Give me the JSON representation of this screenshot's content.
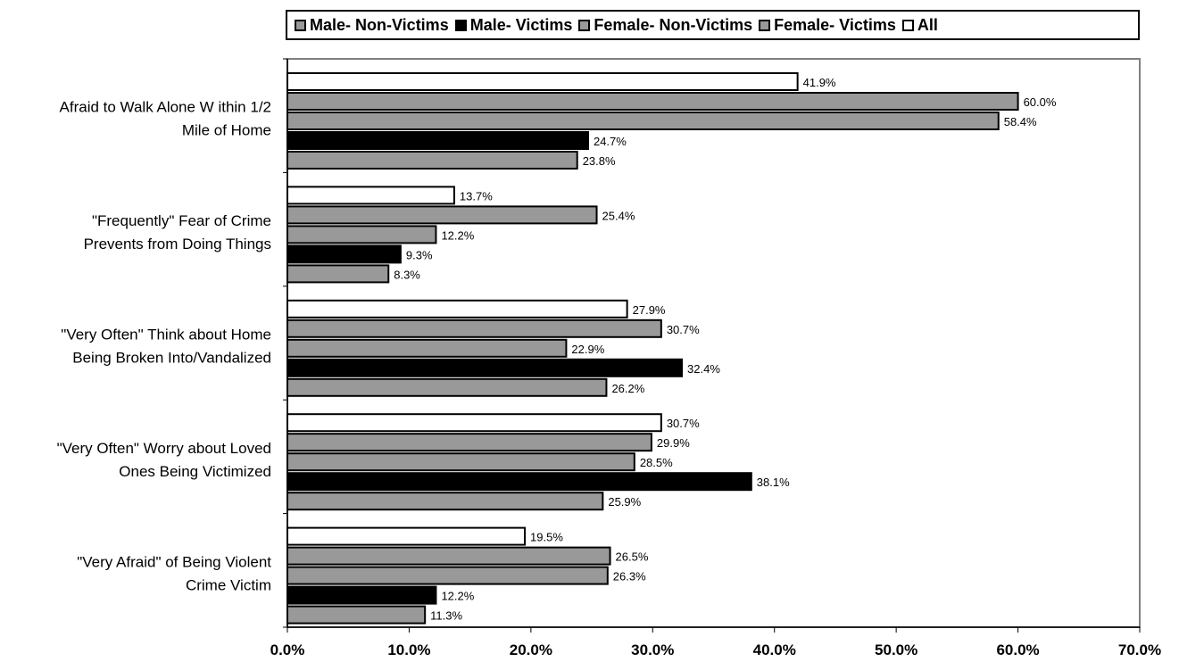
{
  "chart_data": {
    "type": "bar",
    "orientation": "horizontal",
    "categories": [
      [
        "Afraid to Walk Alone W ithin 1/2",
        "Mile of Home"
      ],
      [
        "\"Frequently\" Fear of Crime",
        "Prevents from Doing Things"
      ],
      [
        "\"Very Often\" Think about Home",
        "Being Broken Into/Vandalized"
      ],
      [
        "\"Very Often\" Worry about Loved",
        "Ones Being Victimized"
      ],
      [
        "\"Very Afraid\" of Being Violent",
        "Crime Victim"
      ]
    ],
    "series": [
      {
        "name": "All",
        "color": "#ffffff",
        "values": [
          41.9,
          13.7,
          27.9,
          30.7,
          19.5
        ]
      },
      {
        "name": "Female- Victims",
        "color": "#999999",
        "values": [
          60.0,
          25.4,
          30.7,
          29.9,
          26.5
        ]
      },
      {
        "name": "Female- Non-Victims",
        "color": "#999999",
        "values": [
          58.4,
          12.2,
          22.9,
          28.5,
          26.3
        ]
      },
      {
        "name": "Male- Victims",
        "color": "#000000",
        "values": [
          24.7,
          9.3,
          32.4,
          38.1,
          12.2
        ]
      },
      {
        "name": "Male- Non-Victims",
        "color": "#999999",
        "values": [
          23.8,
          8.3,
          26.2,
          25.9,
          11.3
        ]
      }
    ],
    "value_labels": [
      [
        "41.9%",
        "60.0%",
        "58.4%",
        "24.7%",
        "23.8%"
      ],
      [
        "13.7%",
        "25.4%",
        "12.2%",
        "9.3%",
        "8.3%"
      ],
      [
        "27.9%",
        "30.7%",
        "22.9%",
        "32.4%",
        "26.2%"
      ],
      [
        "30.7%",
        "29.9%",
        "28.5%",
        "38.1%",
        "25.9%"
      ],
      [
        "19.5%",
        "26.5%",
        "26.3%",
        "12.2%",
        "11.3%"
      ]
    ],
    "xlim": [
      0,
      70
    ],
    "x_ticks": [
      0,
      10,
      20,
      30,
      40,
      50,
      60,
      70
    ],
    "x_tick_labels": [
      "0.0%",
      "10.0%",
      "20.0%",
      "30.0%",
      "40.0%",
      "50.0%",
      "60.0%",
      "70.0%"
    ],
    "grid": false,
    "legend": {
      "position": "top",
      "items": [
        {
          "label": "Male- Non-Victims",
          "color": "#999999"
        },
        {
          "label": "Male- Victims",
          "color": "#000000"
        },
        {
          "label": "Female- Non-Victims",
          "color": "#999999"
        },
        {
          "label": "Female- Victims",
          "color": "#999999"
        },
        {
          "label": "All",
          "color": "#ffffff"
        }
      ]
    }
  }
}
